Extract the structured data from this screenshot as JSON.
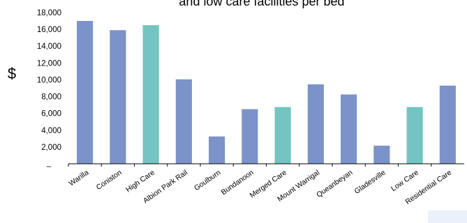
{
  "chart_data": {
    "type": "bar",
    "title": "and low care facilities per bed",
    "ylabel": "$",
    "ylim": [
      0,
      18000
    ],
    "yticks": [
      0,
      2000,
      4000,
      6000,
      8000,
      10000,
      12000,
      14000,
      16000,
      18000
    ],
    "ytick_labels": [
      "–",
      "2,000",
      "4,000",
      "6,000",
      "8,000",
      "10,000",
      "12,000",
      "14,000",
      "16,000",
      "18,000"
    ],
    "categories": [
      "Warilla",
      "Coniston",
      "High Care",
      "Albion Park Rail",
      "Goulburn",
      "Bundanoon",
      "Merged Care",
      "Mount Warrigal",
      "Queanbeyan",
      "Gladesville",
      "Low Care",
      "Residential Care"
    ],
    "values": [
      17000,
      15900,
      16500,
      10050,
      3250,
      6500,
      6750,
      9450,
      8250,
      2150,
      6750,
      9300
    ],
    "highlighted": [
      "High Care",
      "Merged Care",
      "Low Care"
    ],
    "colors": {
      "bar": "#7b93c8",
      "highlight": "#72c5c1",
      "axis": "#000000"
    },
    "grid": false
  }
}
